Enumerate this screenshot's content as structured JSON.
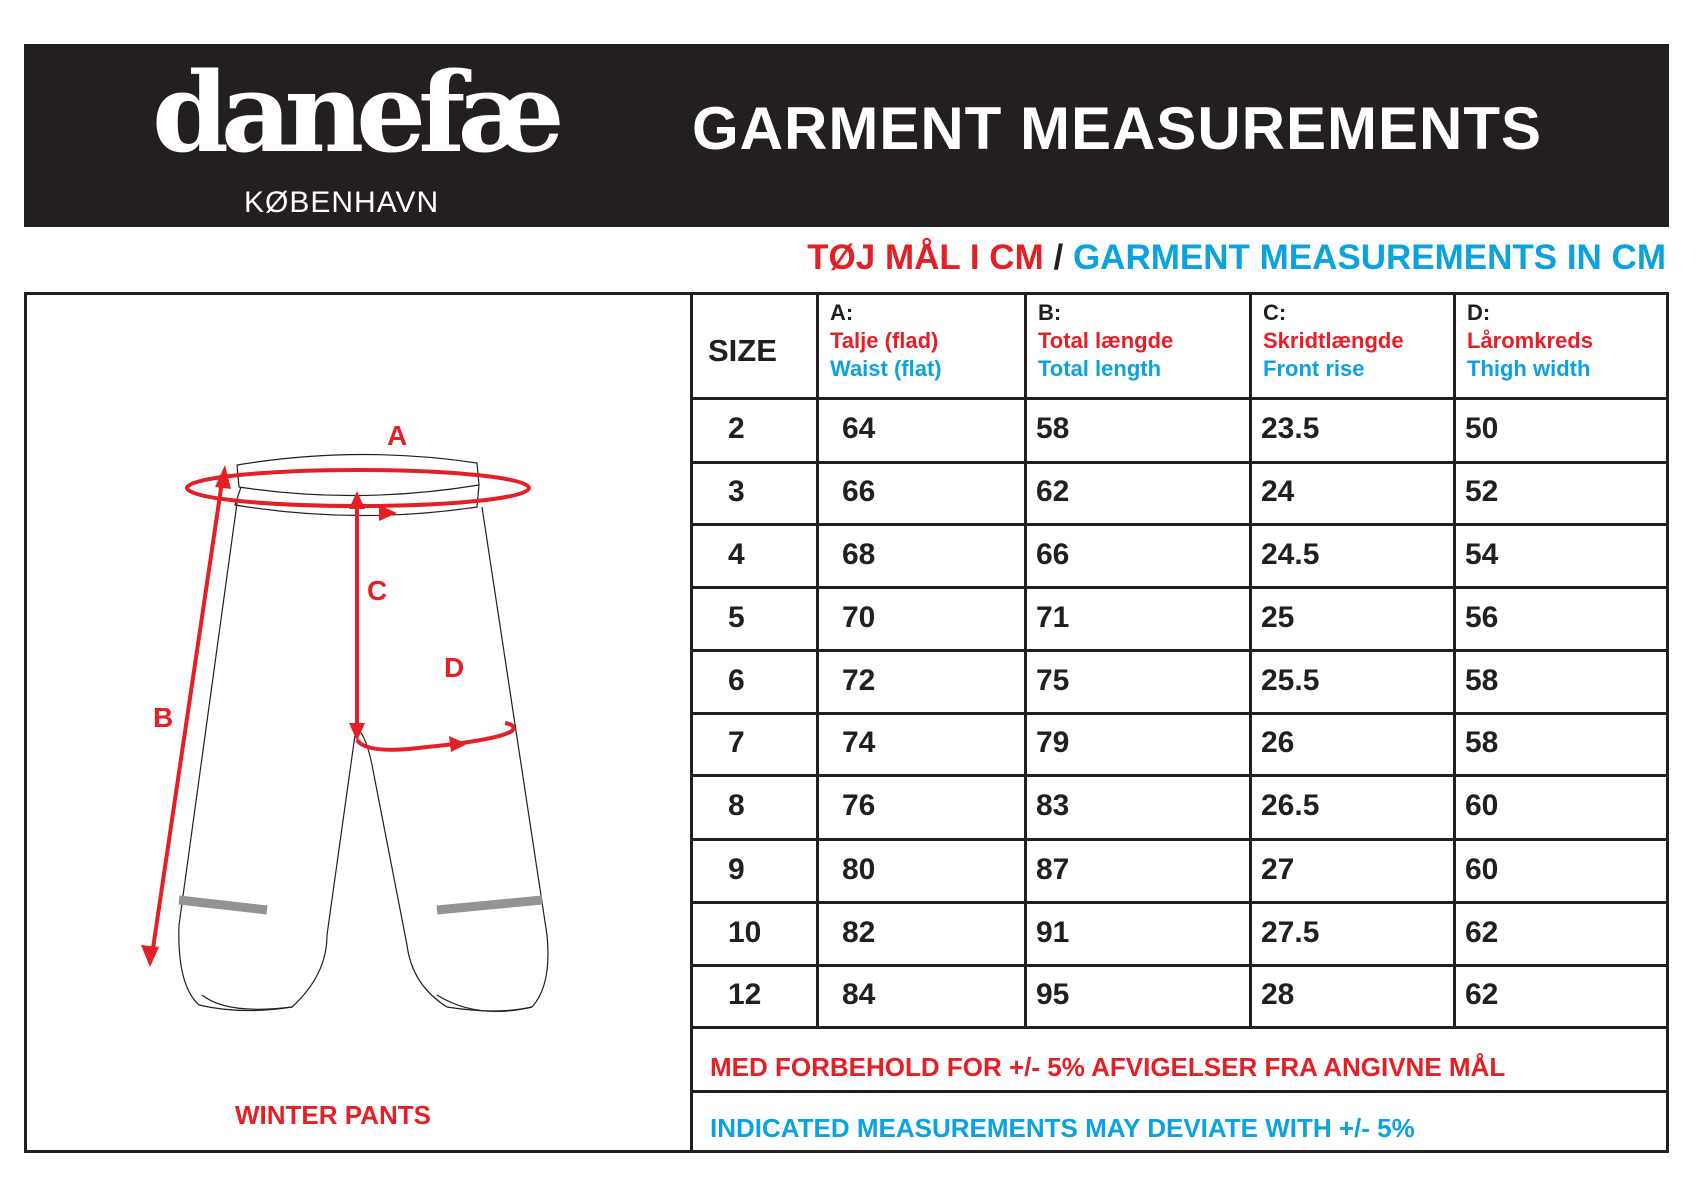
{
  "header": {
    "logo_text": "danefæ",
    "logo_subtext": "KØBENHAVN",
    "title": "GARMENT MEASUREMENTS"
  },
  "subtitle": {
    "danish": "TØJ MÅL I CM",
    "separator": "/",
    "english": "GARMENT MEASUREMENTS IN CM"
  },
  "colors": {
    "red": "#e41f26",
    "blue": "#0ba2dd",
    "dark": "#231f20"
  },
  "drawing": {
    "caption": "WINTER PANTS",
    "labels": {
      "a": "A",
      "b": "B",
      "c": "C",
      "d": "D"
    }
  },
  "table": {
    "size_header": "SIZE",
    "columns": [
      {
        "letter": "A:",
        "danish": "Talje (flad)",
        "english": "Waist (flat)"
      },
      {
        "letter": "B:",
        "danish": "Total længde",
        "english": "Total length"
      },
      {
        "letter": "C:",
        "danish": "Skridtlængde",
        "english": "Front rise"
      },
      {
        "letter": "D:",
        "danish": "Låromkreds",
        "english": "Thigh width"
      }
    ],
    "rows": [
      [
        "2",
        "64",
        "58",
        "23.5",
        "50"
      ],
      [
        "3",
        "66",
        "62",
        "24",
        "52"
      ],
      [
        "4",
        "68",
        "66",
        "24.5",
        "54"
      ],
      [
        "5",
        "70",
        "71",
        "25",
        "56"
      ],
      [
        "6",
        "72",
        "75",
        "25.5",
        "58"
      ],
      [
        "7",
        "74",
        "79",
        "26",
        "58"
      ],
      [
        "8",
        "76",
        "83",
        "26.5",
        "60"
      ],
      [
        "9",
        "80",
        "87",
        "27",
        "60"
      ],
      [
        "10",
        "82",
        "91",
        "27.5",
        "62"
      ],
      [
        "12",
        "84",
        "95",
        "28",
        "62"
      ]
    ]
  },
  "notes": {
    "danish": "MED FORBEHOLD FOR +/- 5% AFVIGELSER FRA ANGIVNE MÅL",
    "english": "INDICATED MEASUREMENTS MAY DEVIATE WITH +/- 5%"
  }
}
